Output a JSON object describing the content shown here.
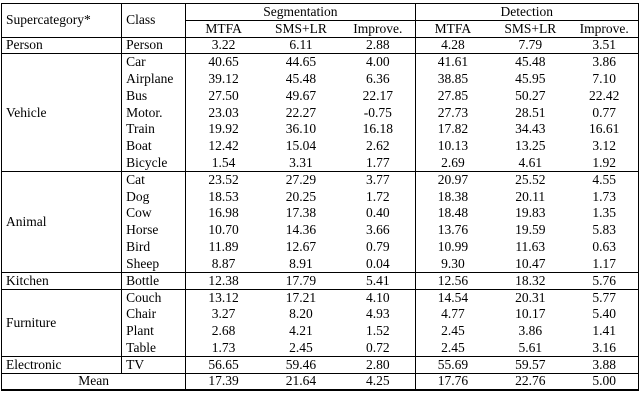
{
  "table": {
    "headers": {
      "supercategory": "Supercategory*",
      "class": "Class",
      "segmentation": "Segmentation",
      "detection": "Detection",
      "metrics": [
        "MTFA",
        "SMS+LR",
        "Improve."
      ]
    },
    "groups": [
      {
        "supercategory": "Person",
        "rows": [
          {
            "class": "Person",
            "seg": [
              "3.22",
              "6.11",
              "2.88"
            ],
            "det": [
              "4.28",
              "7.79",
              "3.51"
            ]
          }
        ]
      },
      {
        "supercategory": "Vehicle",
        "rows": [
          {
            "class": "Car",
            "seg": [
              "40.65",
              "44.65",
              "4.00"
            ],
            "det": [
              "41.61",
              "45.48",
              "3.86"
            ]
          },
          {
            "class": "Airplane",
            "seg": [
              "39.12",
              "45.48",
              "6.36"
            ],
            "det": [
              "38.85",
              "45.95",
              "7.10"
            ]
          },
          {
            "class": "Bus",
            "seg": [
              "27.50",
              "49.67",
              "22.17"
            ],
            "det": [
              "27.85",
              "50.27",
              "22.42"
            ]
          },
          {
            "class": "Motor.",
            "seg": [
              "23.03",
              "22.27",
              "-0.75"
            ],
            "det": [
              "27.73",
              "28.51",
              "0.77"
            ]
          },
          {
            "class": "Train",
            "seg": [
              "19.92",
              "36.10",
              "16.18"
            ],
            "det": [
              "17.82",
              "34.43",
              "16.61"
            ]
          },
          {
            "class": "Boat",
            "seg": [
              "12.42",
              "15.04",
              "2.62"
            ],
            "det": [
              "10.13",
              "13.25",
              "3.12"
            ]
          },
          {
            "class": "Bicycle",
            "seg": [
              "1.54",
              "3.31",
              "1.77"
            ],
            "det": [
              "2.69",
              "4.61",
              "1.92"
            ]
          }
        ]
      },
      {
        "supercategory": "Animal",
        "rows": [
          {
            "class": "Cat",
            "seg": [
              "23.52",
              "27.29",
              "3.77"
            ],
            "det": [
              "20.97",
              "25.52",
              "4.55"
            ]
          },
          {
            "class": "Dog",
            "seg": [
              "18.53",
              "20.25",
              "1.72"
            ],
            "det": [
              "18.38",
              "20.11",
              "1.73"
            ]
          },
          {
            "class": "Cow",
            "seg": [
              "16.98",
              "17.38",
              "0.40"
            ],
            "det": [
              "18.48",
              "19.83",
              "1.35"
            ]
          },
          {
            "class": "Horse",
            "seg": [
              "10.70",
              "14.36",
              "3.66"
            ],
            "det": [
              "13.76",
              "19.59",
              "5.83"
            ]
          },
          {
            "class": "Bird",
            "seg": [
              "11.89",
              "12.67",
              "0.79"
            ],
            "det": [
              "10.99",
              "11.63",
              "0.63"
            ]
          },
          {
            "class": "Sheep",
            "seg": [
              "8.87",
              "8.91",
              "0.04"
            ],
            "det": [
              "9.30",
              "10.47",
              "1.17"
            ]
          }
        ]
      },
      {
        "supercategory": "Kitchen",
        "rows": [
          {
            "class": "Bottle",
            "seg": [
              "12.38",
              "17.79",
              "5.41"
            ],
            "det": [
              "12.56",
              "18.32",
              "5.76"
            ]
          }
        ]
      },
      {
        "supercategory": "Furniture",
        "rows": [
          {
            "class": "Couch",
            "seg": [
              "13.12",
              "17.21",
              "4.10"
            ],
            "det": [
              "14.54",
              "20.31",
              "5.77"
            ]
          },
          {
            "class": "Chair",
            "seg": [
              "3.27",
              "8.20",
              "4.93"
            ],
            "det": [
              "4.77",
              "10.17",
              "5.40"
            ]
          },
          {
            "class": "Plant",
            "seg": [
              "2.68",
              "4.21",
              "1.52"
            ],
            "det": [
              "2.45",
              "3.86",
              "1.41"
            ]
          },
          {
            "class": "Table",
            "seg": [
              "1.73",
              "2.45",
              "0.72"
            ],
            "det": [
              "2.45",
              "5.61",
              "3.16"
            ]
          }
        ]
      },
      {
        "supercategory": "Electronic",
        "rows": [
          {
            "class": "TV",
            "seg": [
              "56.65",
              "59.46",
              "2.80"
            ],
            "det": [
              "55.69",
              "59.57",
              "3.88"
            ]
          }
        ]
      }
    ],
    "mean": {
      "label": "Mean",
      "seg": [
        "17.39",
        "21.64",
        "4.25"
      ],
      "det": [
        "17.76",
        "22.76",
        "5.00"
      ]
    }
  }
}
